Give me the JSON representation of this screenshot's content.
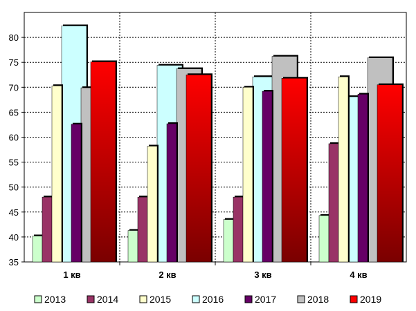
{
  "chart_data": {
    "type": "bar",
    "title": "",
    "xlabel": "",
    "ylabel": "",
    "ylim": [
      35,
      85
    ],
    "yticks": [
      35,
      40,
      45,
      50,
      55,
      60,
      65,
      70,
      75,
      80
    ],
    "grid": "dashed",
    "legend_position": "bottom",
    "categories": [
      "1 кв",
      "2 кв",
      "3 кв",
      "4 кв"
    ],
    "series": [
      {
        "name": "2013",
        "color": "#ccffcc",
        "values": [
          40.2,
          41.3,
          43.5,
          44.3
        ]
      },
      {
        "name": "2014",
        "color": "#993366",
        "values": [
          48.0,
          48.0,
          48.0,
          58.7
        ]
      },
      {
        "name": "2015",
        "color": "#ffffcc",
        "values": [
          70.3,
          58.2,
          70.0,
          72.1
        ]
      },
      {
        "name": "2016",
        "color": "#ccffff",
        "values": [
          82.3,
          74.4,
          72.1,
          68.1
        ]
      },
      {
        "name": "2017",
        "color": "#660066",
        "values": [
          62.6,
          62.7,
          69.2,
          68.6
        ]
      },
      {
        "name": "2018",
        "color": "#c0c0c0",
        "values": [
          69.9,
          73.7,
          76.2,
          75.9
        ]
      },
      {
        "name": "2019",
        "color": "#ff0000",
        "values": [
          75.1,
          72.5,
          71.8,
          70.5
        ]
      }
    ]
  }
}
